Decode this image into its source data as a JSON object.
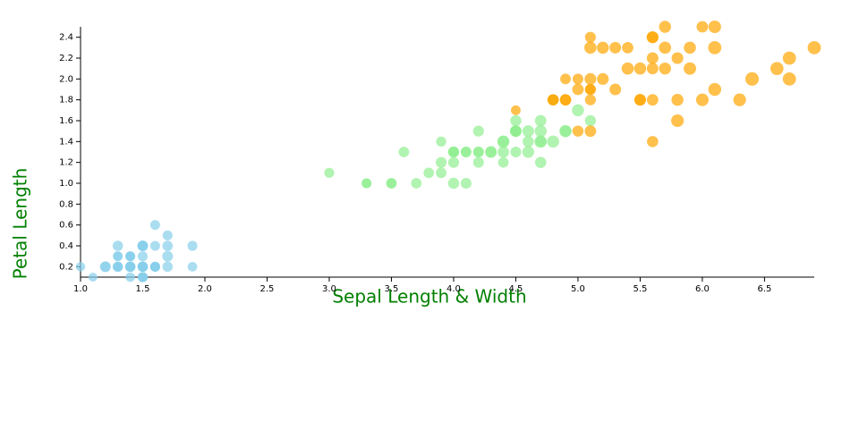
{
  "chart_data": {
    "type": "scatter",
    "xlabel": "Sepal Length & Width",
    "ylabel": "Petal Length",
    "xlim": [
      1.0,
      6.9
    ],
    "ylim": [
      0.1,
      2.5
    ],
    "xticks": [
      {
        "value": 1.0,
        "label": "1.0"
      },
      1.5,
      {
        "value": 2.0,
        "label": "2.0"
      },
      2.5,
      {
        "value": 3.0,
        "label": "3.0"
      },
      3.5,
      {
        "value": 4.0,
        "label": "4.0"
      },
      4.5,
      {
        "value": 5.0,
        "label": "5.0"
      },
      5.5,
      {
        "value": 6.0,
        "label": "6.0"
      },
      6.5
    ],
    "yticks": [
      0.2,
      0.4,
      0.6,
      0.8,
      {
        "value": 1.0,
        "label": "1.0"
      },
      1.2,
      1.4,
      1.6,
      1.8,
      {
        "value": 2.0,
        "label": "2.0"
      },
      2.2,
      2.4
    ],
    "series": [
      {
        "color": "#87ceeb",
        "x": [
          1.4,
          1.4,
          1.3,
          1.5,
          1.4,
          1.7,
          1.4,
          1.5,
          1.4,
          1.5,
          1.5,
          1.6,
          1.4,
          1.1,
          1.2,
          1.5,
          1.3,
          1.4,
          1.7,
          1.5,
          1.7,
          1.5,
          1.0,
          1.7,
          1.9,
          1.6,
          1.6,
          1.5,
          1.4,
          1.6,
          1.6,
          1.5,
          1.5,
          1.4,
          1.5,
          1.2,
          1.3,
          1.5,
          1.3,
          1.5,
          1.3,
          1.3,
          1.3,
          1.6,
          1.9,
          1.4,
          1.6,
          1.4,
          1.5,
          1.4
        ],
        "y": [
          0.2,
          0.2,
          0.2,
          0.2,
          0.2,
          0.4,
          0.3,
          0.2,
          0.2,
          0.1,
          0.2,
          0.2,
          0.1,
          0.1,
          0.2,
          0.4,
          0.4,
          0.3,
          0.3,
          0.3,
          0.2,
          0.4,
          0.2,
          0.5,
          0.2,
          0.2,
          0.4,
          0.2,
          0.2,
          0.2,
          0.2,
          0.4,
          0.1,
          0.2,
          0.1,
          0.2,
          0.2,
          0.1,
          0.2,
          0.2,
          0.3,
          0.3,
          0.2,
          0.6,
          0.4,
          0.3,
          0.2,
          0.2,
          0.2,
          0.2
        ],
        "sizes": [
          5.1,
          4.9,
          4.7,
          4.6,
          5.0,
          5.4,
          4.6,
          5.0,
          4.4,
          4.9,
          5.4,
          4.8,
          4.8,
          4.3,
          5.8,
          5.7,
          5.4,
          5.1,
          5.7,
          5.1,
          5.4,
          5.1,
          4.6,
          5.1,
          4.8,
          5.0,
          5.0,
          5.2,
          5.2,
          4.7,
          4.8,
          5.4,
          5.2,
          5.5,
          4.9,
          5.0,
          5.5,
          4.9,
          4.4,
          5.1,
          5.0,
          4.5,
          4.4,
          5.0,
          5.1,
          4.8,
          5.1,
          4.6,
          5.3,
          5.0
        ]
      },
      {
        "color": "#90ee90",
        "x": [
          4.7,
          4.5,
          4.9,
          4.0,
          4.6,
          4.5,
          4.7,
          3.3,
          4.6,
          3.9,
          3.5,
          4.2,
          4.0,
          4.7,
          3.6,
          4.4,
          4.5,
          4.1,
          4.5,
          3.9,
          4.8,
          4.0,
          4.9,
          4.7,
          4.3,
          4.4,
          4.8,
          5.0,
          4.5,
          3.5,
          3.8,
          3.7,
          3.9,
          5.1,
          4.5,
          4.5,
          4.7,
          4.4,
          4.1,
          4.0,
          4.4,
          4.6,
          4.0,
          3.3,
          4.2,
          4.2,
          4.2,
          4.3,
          3.0,
          4.1
        ],
        "y": [
          1.4,
          1.5,
          1.5,
          1.3,
          1.5,
          1.3,
          1.6,
          1.0,
          1.3,
          1.4,
          1.0,
          1.5,
          1.0,
          1.4,
          1.3,
          1.4,
          1.5,
          1.0,
          1.5,
          1.1,
          1.8,
          1.3,
          1.5,
          1.2,
          1.3,
          1.4,
          1.4,
          1.7,
          1.5,
          1.0,
          1.1,
          1.0,
          1.2,
          1.6,
          1.5,
          1.6,
          1.5,
          1.3,
          1.3,
          1.3,
          1.2,
          1.4,
          1.2,
          1.0,
          1.3,
          1.2,
          1.3,
          1.3,
          1.1,
          1.3
        ],
        "sizes": [
          7.0,
          6.4,
          6.9,
          5.5,
          6.5,
          5.7,
          6.3,
          4.9,
          6.6,
          5.2,
          5.0,
          5.9,
          6.0,
          6.1,
          5.6,
          6.7,
          5.6,
          5.8,
          6.2,
          5.6,
          5.9,
          6.1,
          6.3,
          6.1,
          6.4,
          6.6,
          6.8,
          6.7,
          6.0,
          5.7,
          5.5,
          5.5,
          5.8,
          6.0,
          5.4,
          6.0,
          6.7,
          6.3,
          5.6,
          5.5,
          5.5,
          6.1,
          5.8,
          5.0,
          5.6,
          5.7,
          5.7,
          6.2,
          5.1,
          5.7
        ]
      },
      {
        "color": "#ffa500",
        "x": [
          6.0,
          5.1,
          5.9,
          5.6,
          5.8,
          6.6,
          4.5,
          6.3,
          5.8,
          6.1,
          5.1,
          5.3,
          5.5,
          5.0,
          5.1,
          5.3,
          5.5,
          6.7,
          6.9,
          5.0,
          5.7,
          4.9,
          6.7,
          4.9,
          5.7,
          6.0,
          4.8,
          4.9,
          5.6,
          5.8,
          6.1,
          6.4,
          5.6,
          5.1,
          5.6,
          6.1,
          5.6,
          5.5,
          4.8,
          5.4,
          5.6,
          5.1,
          5.1,
          5.9,
          5.7,
          5.2,
          5.0,
          5.2,
          5.4,
          5.1
        ],
        "y": [
          2.5,
          1.9,
          2.1,
          1.8,
          2.2,
          2.1,
          1.7,
          1.8,
          1.8,
          2.5,
          2.0,
          1.9,
          2.1,
          2.0,
          2.4,
          2.3,
          1.8,
          2.2,
          2.3,
          1.5,
          2.3,
          2.0,
          2.0,
          1.8,
          2.1,
          1.8,
          1.8,
          1.8,
          2.1,
          1.6,
          1.9,
          2.0,
          2.2,
          1.5,
          1.4,
          2.3,
          2.4,
          1.8,
          1.8,
          2.1,
          2.4,
          2.3,
          1.9,
          2.3,
          2.5,
          2.3,
          1.9,
          2.0,
          2.3,
          1.8
        ],
        "sizes": [
          6.3,
          5.8,
          7.1,
          6.3,
          6.5,
          7.6,
          4.9,
          7.3,
          6.7,
          7.2,
          6.5,
          6.4,
          6.8,
          5.7,
          5.8,
          6.4,
          6.5,
          7.7,
          7.7,
          6.0,
          6.9,
          5.6,
          7.7,
          6.3,
          6.7,
          7.2,
          6.2,
          6.1,
          6.4,
          7.2,
          7.4,
          7.9,
          6.4,
          6.3,
          6.1,
          7.7,
          6.3,
          6.4,
          6.0,
          6.9,
          6.7,
          6.9,
          5.8,
          6.8,
          6.7,
          6.7,
          6.3,
          6.5,
          6.2,
          5.9
        ]
      }
    ]
  }
}
